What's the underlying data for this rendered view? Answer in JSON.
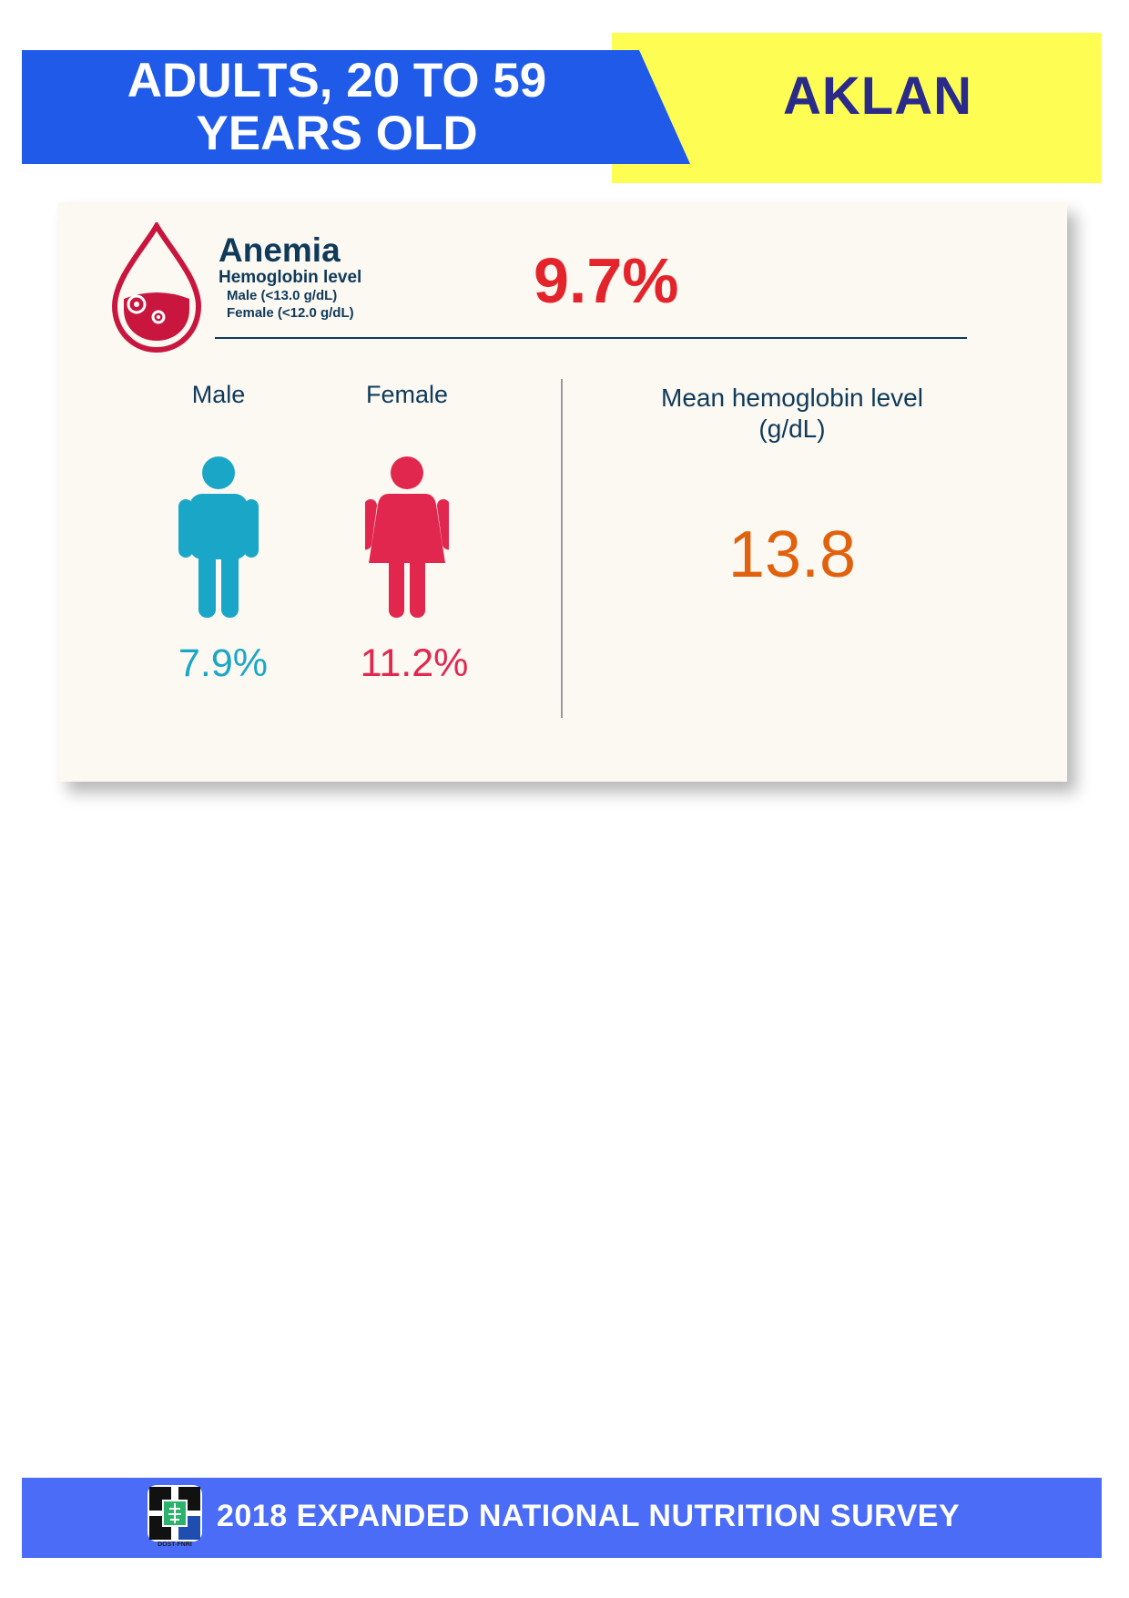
{
  "header": {
    "title_line1": "ADULTS, 20 TO 59",
    "title_line2": "YEARS OLD",
    "region": "AKLAN",
    "colors": {
      "blue": "#1f5be8",
      "yellow": "#fdfd54",
      "region_text": "#2a2a8a"
    }
  },
  "anemia": {
    "title": "Anemia",
    "hemoglobin_label": "Hemoglobin level",
    "male_threshold": "Male  (<13.0 g/dL)",
    "female_threshold": "Female  (<12.0 g/dL)",
    "overall_prevalence": "9.7%",
    "icon": "blood-drop-icon"
  },
  "by_sex": {
    "male": {
      "label": "Male",
      "prevalence": "7.9%",
      "color": "#1aa7c7",
      "icon": "male-figure-icon"
    },
    "female": {
      "label": "Female",
      "prevalence": "11.2%",
      "color": "#e2274f",
      "icon": "female-figure-icon"
    }
  },
  "mean_hemoglobin": {
    "label_line1": "Mean hemoglobin level",
    "label_line2": "(g/dL)",
    "value": "13.8"
  },
  "footer": {
    "text": "2018 EXPANDED NATIONAL NUTRITION SURVEY",
    "logo_text": "DOST-FNRI",
    "color": "#4a6cf7"
  }
}
